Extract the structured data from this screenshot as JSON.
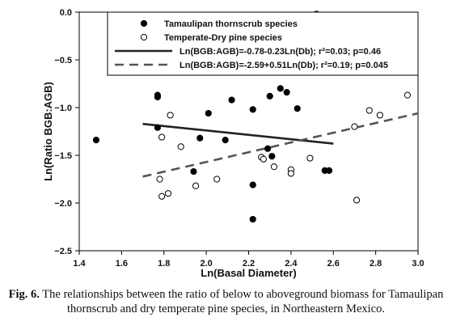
{
  "chart_data": {
    "type": "scatter",
    "xlabel": "Ln(Basal Diameter)",
    "ylabel": "Ln(Ratio BGB:AGB)",
    "xlim": [
      1.4,
      3.0
    ],
    "ylim": [
      -2.5,
      0.0
    ],
    "x_ticks": [
      "1.4",
      "1.6",
      "1.8",
      "2.0",
      "2.2",
      "2.4",
      "2.6",
      "2.8",
      "3.0"
    ],
    "y_ticks": [
      "0.0",
      "-0.5",
      "-1.0",
      "-1.5",
      "-2.0",
      "-2.5"
    ],
    "grid": false,
    "legend_position": "top-right",
    "series": [
      {
        "name": "Tamaulipan thornscrub species",
        "marker": "filled-circle",
        "color": "#000000",
        "points": [
          [
            1.48,
            -1.34
          ],
          [
            1.77,
            -0.87
          ],
          [
            1.77,
            -0.89
          ],
          [
            1.77,
            -1.21
          ],
          [
            1.94,
            -1.67
          ],
          [
            1.97,
            -1.32
          ],
          [
            2.01,
            -1.06
          ],
          [
            2.09,
            -1.34
          ],
          [
            2.12,
            -0.92
          ],
          [
            2.22,
            -1.02
          ],
          [
            2.22,
            -1.81
          ],
          [
            2.22,
            -2.17
          ],
          [
            2.29,
            -1.43
          ],
          [
            2.3,
            -0.88
          ],
          [
            2.31,
            -1.51
          ],
          [
            2.35,
            -0.8
          ],
          [
            2.38,
            -0.84
          ],
          [
            2.43,
            -1.01
          ],
          [
            2.56,
            -1.66
          ],
          [
            2.58,
            -1.66
          ]
        ]
      },
      {
        "name": "Temperate-Dry pine species",
        "marker": "open-circle",
        "color": "#000000",
        "points": [
          [
            1.78,
            -1.75
          ],
          [
            1.79,
            -1.31
          ],
          [
            1.79,
            -1.93
          ],
          [
            1.82,
            -1.9
          ],
          [
            1.83,
            -1.08
          ],
          [
            1.88,
            -1.41
          ],
          [
            1.95,
            -1.82
          ],
          [
            2.05,
            -1.75
          ],
          [
            2.26,
            -1.52
          ],
          [
            2.27,
            -1.54
          ],
          [
            2.32,
            -1.62
          ],
          [
            2.4,
            -1.65
          ],
          [
            2.4,
            -1.69
          ],
          [
            2.49,
            -1.53
          ],
          [
            2.52,
            -0.02
          ],
          [
            2.7,
            -1.2
          ],
          [
            2.71,
            -1.97
          ],
          [
            2.77,
            -1.03
          ],
          [
            2.82,
            -1.08
          ],
          [
            2.95,
            -0.87
          ]
        ]
      }
    ],
    "fits": [
      {
        "name": "Ln(BGB:AGB)=-0.78-0.23Ln(Db); r²=0.03; p=0.46",
        "intercept": -0.78,
        "slope": -0.23,
        "x_range": [
          1.7,
          2.6
        ],
        "style": "solid",
        "color": "#222222"
      },
      {
        "name": "Ln(BGB:AGB)=-2.59+0.51Ln(Db); r²=0.19; p=0.045",
        "intercept": -2.59,
        "slope": 0.51,
        "x_range": [
          1.7,
          3.0
        ],
        "style": "dashed",
        "color": "#555555"
      }
    ]
  },
  "caption": {
    "label": "Fig. 6.",
    "text": "The relationships between the ratio of below to aboveground biomass for Tamaulipan thornscrub and dry temperate pine species, in Northeastern Mexico."
  }
}
